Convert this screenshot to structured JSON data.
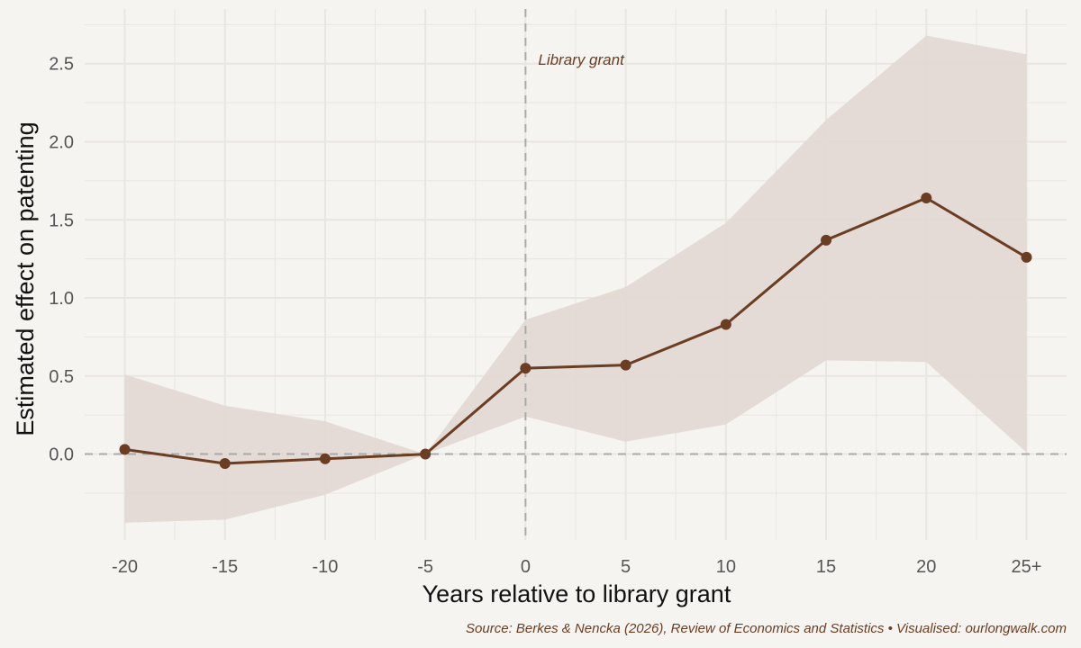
{
  "chart_data": {
    "type": "line",
    "categories": [
      "-20",
      "-15",
      "-10",
      "-5",
      "0",
      "5",
      "10",
      "15",
      "20",
      "25+"
    ],
    "x": [
      -20,
      -15,
      -10,
      -5,
      0,
      5,
      10,
      15,
      20,
      25
    ],
    "series": [
      {
        "values": [
          0.03,
          -0.06,
          -0.03,
          0.0,
          0.55,
          0.57,
          0.83,
          1.37,
          1.64,
          1.26
        ],
        "lower": [
          -0.44,
          -0.42,
          -0.26,
          0.0,
          0.24,
          0.08,
          0.19,
          0.6,
          0.59,
          0.01
        ],
        "upper": [
          0.51,
          0.31,
          0.21,
          0.0,
          0.86,
          1.07,
          1.48,
          2.14,
          2.68,
          2.56
        ]
      }
    ],
    "xlabel": "Years relative to library grant",
    "ylabel": "Estimated effect on patenting",
    "yticks": [
      "0.0",
      "0.5",
      "1.0",
      "1.5",
      "2.0",
      "2.5"
    ],
    "xlim": [
      -22,
      27
    ],
    "ylim": [
      -0.55,
      2.85
    ],
    "grid": true,
    "reference_lines": [
      {
        "axis": "y",
        "value": 0,
        "style": "dashed"
      },
      {
        "axis": "x",
        "value": 0,
        "style": "dashed"
      }
    ],
    "annotations": [
      {
        "text": "Library grant",
        "x": 0
      }
    ],
    "source": "Source: Berkes & Nencka (2026), Review of Economics and Statistics • Visualised: ourlongwalk.com"
  },
  "colors": {
    "line": "#6b3d22",
    "band": "#e2d8d3",
    "background": "#f6f4f1",
    "grid": "#e9e5e1",
    "reference": "#aaaaaa"
  }
}
